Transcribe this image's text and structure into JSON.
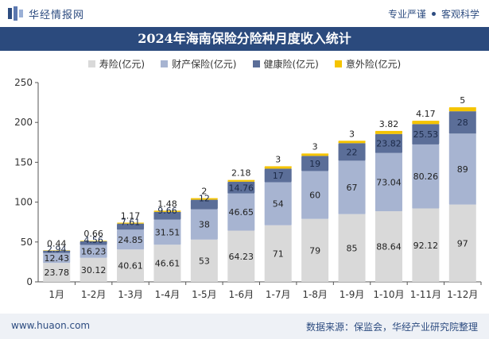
{
  "header": {
    "brand": "华经情报网",
    "tagline_left": "专业严谨",
    "tagline_right": "客观科学"
  },
  "title": "2024年海南保险分险种月度收入统计",
  "footer": {
    "website": "www.huaon.com",
    "source": "数据来源：保监会，华经产业研究院整理"
  },
  "colors": {
    "life": "#d9d9d9",
    "property": "#a7b4d1",
    "health": "#5b6e98",
    "accident": "#f5c400",
    "header_bg": "#2b4a7d"
  },
  "chart_data": {
    "type": "bar",
    "stacked": true,
    "categories": [
      "1月",
      "1-2月",
      "1-3月",
      "1-4月",
      "1-5月",
      "1-6月",
      "1-7月",
      "1-8月",
      "1-9月",
      "1-10月",
      "1-11月",
      "1-12月"
    ],
    "series": [
      {
        "name": "寿险(亿元)",
        "color": "#d9d9d9",
        "values": [
          23.78,
          30.12,
          40.61,
          46.61,
          53,
          64.23,
          71,
          79,
          85,
          88.64,
          92.12,
          97
        ]
      },
      {
        "name": "财产保险(亿元)",
        "color": "#a7b4d1",
        "values": [
          12.43,
          16.23,
          24.85,
          31.51,
          38,
          46.65,
          54,
          60,
          67,
          73.04,
          80.26,
          89
        ]
      },
      {
        "name": "健康险(亿元)",
        "color": "#5b6e98",
        "values": [
          2.94,
          4.56,
          7.61,
          9.66,
          12,
          14.76,
          17,
          19,
          22,
          23.82,
          25.53,
          28
        ]
      },
      {
        "name": "意外险(亿元)",
        "color": "#f5c400",
        "values": [
          0.44,
          0.66,
          1.17,
          1.48,
          2,
          2.18,
          3,
          3,
          3,
          3.82,
          4.17,
          5
        ]
      }
    ],
    "ylim": [
      0,
      250
    ],
    "yticks": [
      0,
      50,
      100,
      150,
      200,
      250
    ],
    "grid": false,
    "legend_position": "top"
  }
}
